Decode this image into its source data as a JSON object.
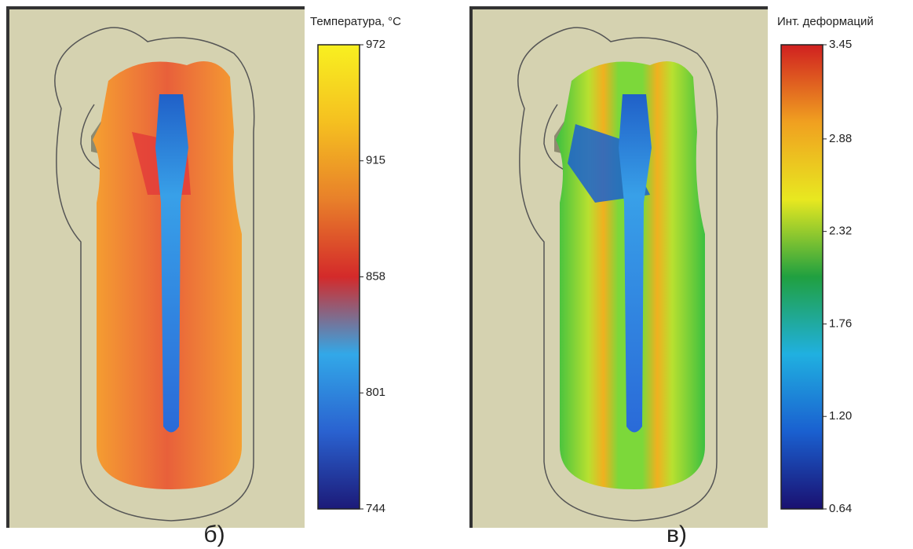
{
  "chart_data": [
    {
      "type": "colorbar",
      "title": "Температура, °C",
      "panel_label": "б)",
      "ylim": [
        744,
        972
      ],
      "yticks": [
        744,
        801,
        858,
        915,
        972
      ],
      "colors": [
        "#1c1a78",
        "#2a62d0",
        "#32a8e8",
        "#d42a2a",
        "#e8802a",
        "#f5c020",
        "#f8f020"
      ]
    },
    {
      "type": "colorbar",
      "title": "Инт. деформаций",
      "panel_label": "в)",
      "ylim": [
        0.64,
        3.45
      ],
      "yticks": [
        0.64,
        {
          "value": 1.2,
          "label": "1.20"
        },
        1.76,
        2.32,
        2.88,
        3.45
      ],
      "colors": [
        "#1a1070",
        "#1a60d0",
        "#20b0e0",
        "#20a040",
        "#e8e820",
        "#f0a020",
        "#d02020"
      ]
    }
  ]
}
